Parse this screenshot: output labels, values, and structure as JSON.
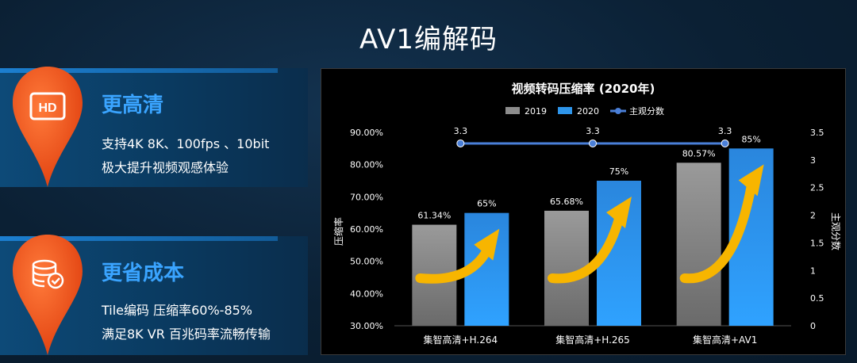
{
  "page": {
    "title": "AV1编解码"
  },
  "features": [
    {
      "icon": "hd-icon",
      "title": "更高清",
      "lines": [
        "支持4K 8K、100fps 、10bit",
        "极大提升视频观感体验"
      ]
    },
    {
      "icon": "database-check-icon",
      "title": "更省成本",
      "lines": [
        "Tile编码 压缩率60%-85%",
        "满足8K VR 百兆码率流畅传输"
      ]
    }
  ],
  "hd_badge_text": "HD",
  "colors": {
    "accent": "#3aa4ff",
    "pin_orange": "#f25a1f",
    "bar_2019": "#8c8c8c",
    "bar_2020": "#2e95ea",
    "line": "#4a7fd8",
    "arrow": "#f7b500"
  },
  "chart_data": {
    "type": "bar",
    "title": "视频转码压缩率 (2020年)",
    "categories": [
      "集智高清+H.264",
      "集智高清+H.265",
      "集智高清+AV1"
    ],
    "series": [
      {
        "name": "2019",
        "type": "bar",
        "values": [
          61.34,
          65.68,
          80.57
        ],
        "labels": [
          "61.34%",
          "65.68%",
          "80.57%"
        ]
      },
      {
        "name": "2020",
        "type": "bar",
        "values": [
          65,
          75,
          85
        ],
        "labels": [
          "65%",
          "75%",
          "85%"
        ]
      },
      {
        "name": "主观分数",
        "type": "line",
        "axis": "right",
        "values": [
          3.3,
          3.3,
          3.3
        ],
        "labels": [
          "3.3",
          "3.3",
          "3.3"
        ]
      }
    ],
    "ylabel": "压缩率",
    "y2label": "主观分数",
    "ylim": [
      30,
      90
    ],
    "yticks": [
      "30.00%",
      "40.00%",
      "50.00%",
      "60.00%",
      "70.00%",
      "80.00%",
      "90.00%"
    ],
    "y2lim": [
      0,
      3.5
    ],
    "y2ticks": [
      "0",
      "0.5",
      "1",
      "1.5",
      "2",
      "2.5",
      "3",
      "3.5"
    ],
    "legend_position": "top",
    "grid": false,
    "annotations": [
      "increase-arrow",
      "increase-arrow",
      "increase-arrow"
    ]
  }
}
